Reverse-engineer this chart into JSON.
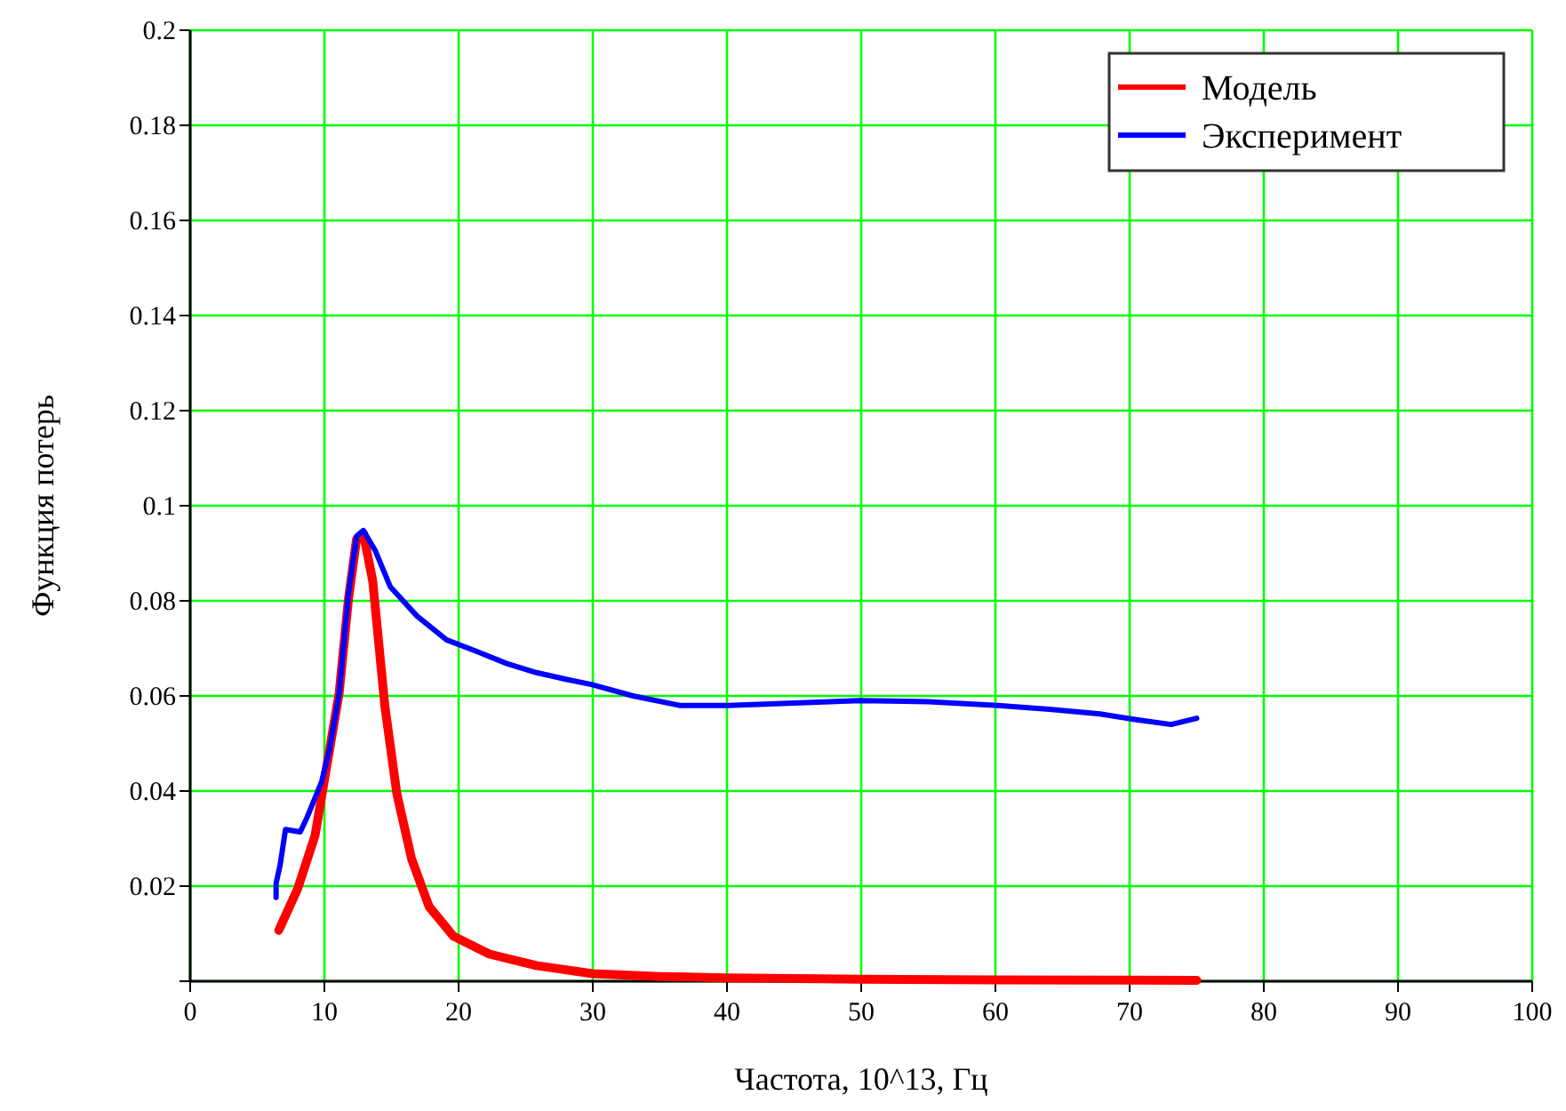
{
  "chart_data": {
    "type": "line",
    "xlabel": "Частота, 10^13, Гц",
    "ylabel": "Функция потерь",
    "xlim": [
      0,
      100
    ],
    "xticks": [
      0,
      10,
      20,
      30,
      40,
      50,
      60,
      70,
      80,
      90,
      100
    ],
    "ylim": [
      0,
      0.2
    ],
    "yticks": [
      {
        "value": 0,
        "label": null
      },
      0.02,
      0.04,
      0.06,
      0.08,
      0.1,
      0.12,
      0.14,
      0.16,
      0.18,
      0.2
    ],
    "grid": true,
    "legend": "top right",
    "line_style": "solid",
    "marker": "none",
    "series": [
      {
        "name": "Модель",
        "color": "#ff0000",
        "x": [
          6.6,
          8.0,
          9.3,
          10.2,
          11.1,
          11.8,
          12.4,
          12.9,
          13.6,
          14.5,
          15.4,
          16.5,
          17.8,
          19.6,
          22.3,
          25.8,
          30,
          35,
          40,
          47,
          50,
          60,
          75
        ],
        "values": [
          0.0107,
          0.0194,
          0.0306,
          0.0456,
          0.0606,
          0.0805,
          0.093,
          0.0942,
          0.0842,
          0.058,
          0.0394,
          0.0257,
          0.0157,
          0.0095,
          0.0057,
          0.0033,
          0.0016,
          0.001,
          0.0007,
          0.0005,
          0.0004,
          0.0003,
          0.0002
        ]
      },
      {
        "name": "Эксперимент",
        "color": "#0000ff",
        "x": [
          6.4,
          6.4,
          6.7,
          7.1,
          8.2,
          8.7,
          9.8,
          10.4,
          11.1,
          11.8,
          12.4,
          12.9,
          13.8,
          14.9,
          16.9,
          19.1,
          21.4,
          23.6,
          25.8,
          28,
          29.9,
          33,
          36.5,
          40.1,
          45,
          49.9,
          55,
          60.2,
          64,
          67.8,
          70.5,
          73.1,
          75.0
        ],
        "values": [
          0.0176,
          0.0206,
          0.0244,
          0.0319,
          0.0314,
          0.0344,
          0.042,
          0.049,
          0.0606,
          0.0818,
          0.0936,
          0.0948,
          0.0905,
          0.083,
          0.0768,
          0.0718,
          0.0693,
          0.0668,
          0.0649,
          0.0635,
          0.0624,
          0.06,
          0.058,
          0.058,
          0.0585,
          0.059,
          0.0588,
          0.058,
          0.0572,
          0.0562,
          0.055,
          0.054,
          0.0553
        ]
      }
    ]
  }
}
